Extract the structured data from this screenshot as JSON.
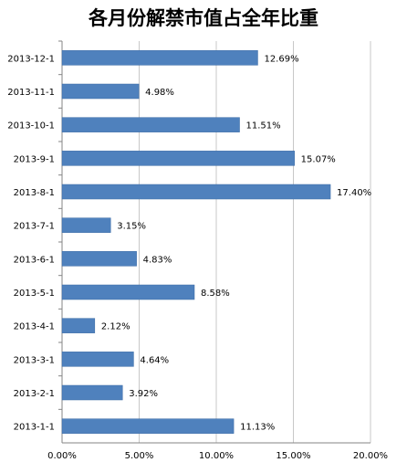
{
  "chart_data": {
    "type": "bar",
    "orientation": "horizontal",
    "title": "各月份解禁市值占全年比重",
    "xlabel": "",
    "ylabel": "",
    "categories": [
      "2013-12-1",
      "2013-11-1",
      "2013-10-1",
      "2013-9-1",
      "2013-8-1",
      "2013-7-1",
      "2013-6-1",
      "2013-5-1",
      "2013-4-1",
      "2013-3-1",
      "2013-2-1",
      "2013-1-1"
    ],
    "values": [
      12.69,
      4.98,
      11.51,
      15.07,
      17.4,
      3.15,
      4.83,
      8.58,
      2.12,
      4.64,
      3.92,
      11.13
    ],
    "data_labels": [
      "12.69%",
      "4.98%",
      "11.51%",
      "15.07%",
      "17.40%",
      "3.15%",
      "4.83%",
      "8.58%",
      "2.12%",
      "4.64%",
      "3.92%",
      "11.13%"
    ],
    "xlim": [
      0,
      20
    ],
    "x_ticks": [
      0,
      5,
      10,
      15,
      20
    ],
    "x_tick_labels": [
      "0.00%",
      "5.00%",
      "10.00%",
      "15.00%",
      "20.00%"
    ],
    "grid": "vertical",
    "legend": "none",
    "colors": {
      "bar": "#4F81BD",
      "bar_stroke": "#3A6AA5",
      "grid": "#C8C8C8",
      "axis": "#868686"
    }
  }
}
